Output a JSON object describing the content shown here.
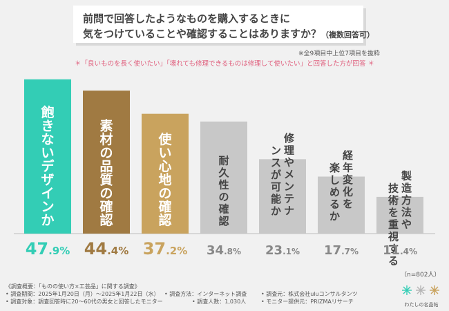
{
  "title": {
    "line1": "前問で回答したようなものを購入するときに",
    "line2": "気をつけていることや確認することはありますか？",
    "line2_note": "（複数回答可）"
  },
  "note_top": "※全9項目中上位7項目を抜粋",
  "subnote": "＊「良いものを長く使いたい」「壊れても修理できるものは修理して使いたい」と回答した方が回答 ＊",
  "sample_size": "（n=802人）",
  "colors": {
    "teal": "#33cdb5",
    "brown": "#a07a42",
    "gold": "#c9a35e",
    "gray": "#c8c8c8",
    "pink": "#e0607e"
  },
  "chart_data": {
    "type": "bar",
    "categories": [
      "飽きないデザインか",
      "素材の品質の確認",
      "使い心地の確認",
      "耐久性の確認",
      "修理やメンテナンスが可能か",
      "経年変化を楽しめるか",
      "製造方法や技術を重視する"
    ],
    "values": [
      47.9,
      44.4,
      37.2,
      34.8,
      23.1,
      17.7,
      11.4
    ],
    "value_labels": [
      "47.9%",
      "44.4%",
      "37.2%",
      "34.8%",
      "23.1%",
      "17.7%",
      "11.4%"
    ],
    "bar_colors": [
      "#33cdb5",
      "#a07a42",
      "#c9a35e",
      "#c8c8c8",
      "#c8c8c8",
      "#c8c8c8",
      "#c8c8c8"
    ],
    "label_colors": [
      "#33cdb5",
      "#a07a42",
      "#c9a35e",
      "#888888",
      "#888888",
      "#888888",
      "#888888"
    ],
    "ylim": [
      0,
      50
    ],
    "grid": false,
    "legend": "none"
  },
  "footer": {
    "survey": "《調査概要：「ものの使い方×工芸品」に関する調査》",
    "period": "• 調査期間：2025年1月20日（月）〜2025年1月22日（水）",
    "method": "• 調査方法：インターネット調査",
    "source": "• 調査元：株式会社uluコンサルタンツ",
    "target": "• 調査対象：調査回答時に20〜60代の男女と回答したモニター",
    "count": "• 調査人数：1,030人",
    "provider": "• モニター提供元：PRIZMAリサーチ"
  },
  "logo_text": "わたしの名品帖"
}
